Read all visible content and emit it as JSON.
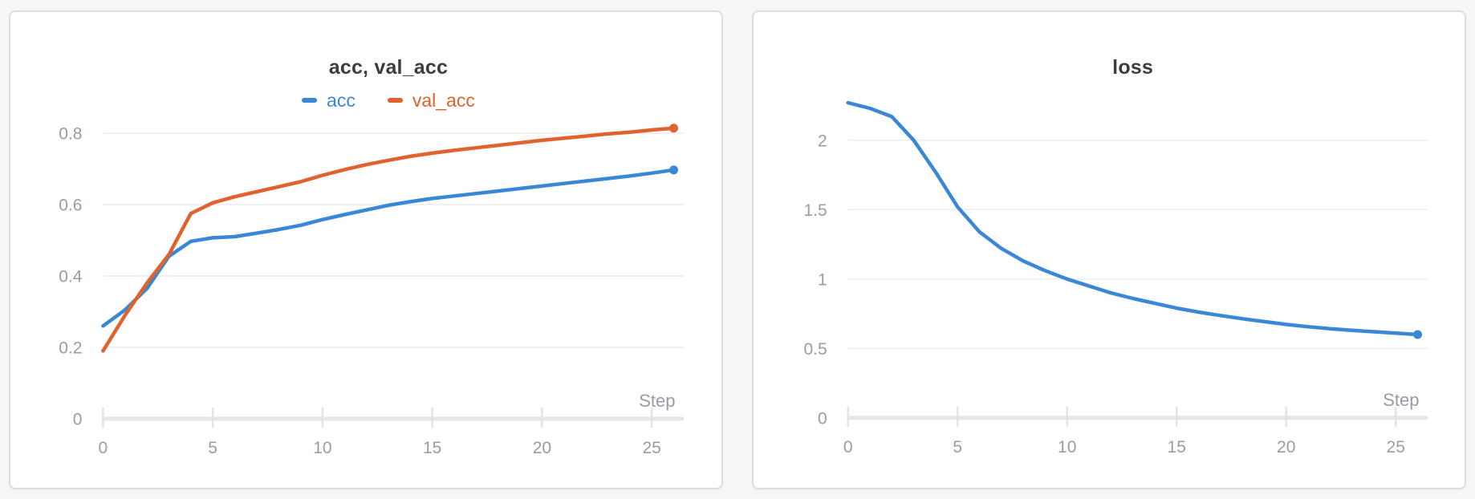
{
  "theme": {
    "page_background": "#f5f6f7",
    "card_background": "#ffffff",
    "card_border": "#dbdddf",
    "gridline_color": "#ececee",
    "axis_color": "#e5e6e8",
    "tick_label_color": "#979ca6",
    "title_color": "#3a3d42",
    "series_blue": "#3a87d8",
    "series_orange": "#e0622d"
  },
  "chart_data": [
    {
      "type": "line",
      "title": "acc, val_acc",
      "xlabel": "Step",
      "x": [
        0,
        1,
        2,
        3,
        4,
        5,
        6,
        7,
        8,
        9,
        10,
        11,
        12,
        13,
        14,
        15,
        16,
        17,
        18,
        19,
        20,
        21,
        22,
        23,
        24,
        25,
        26
      ],
      "x_ticks": [
        0,
        5,
        10,
        15,
        20,
        25
      ],
      "y_ticks": [
        0,
        0.2,
        0.4,
        0.6,
        0.8
      ],
      "xlim": [
        0,
        26
      ],
      "ylim": [
        0,
        0.9
      ],
      "grid": true,
      "legend_position": "top-center",
      "endpoint_markers": true,
      "series": [
        {
          "name": "acc",
          "color": "#3a87d8",
          "values": [
            0.26,
            0.305,
            0.365,
            0.455,
            0.497,
            0.507,
            0.51,
            0.52,
            0.53,
            0.542,
            0.558,
            0.572,
            0.585,
            0.598,
            0.608,
            0.617,
            0.624,
            0.631,
            0.638,
            0.645,
            0.652,
            0.659,
            0.666,
            0.673,
            0.68,
            0.688,
            0.697
          ]
        },
        {
          "name": "val_acc",
          "color": "#e0622d",
          "values": [
            0.19,
            0.29,
            0.38,
            0.46,
            0.575,
            0.605,
            0.622,
            0.636,
            0.65,
            0.664,
            0.682,
            0.698,
            0.712,
            0.724,
            0.735,
            0.744,
            0.752,
            0.759,
            0.766,
            0.773,
            0.78,
            0.786,
            0.792,
            0.798,
            0.803,
            0.809,
            0.814
          ]
        }
      ]
    },
    {
      "type": "line",
      "title": "loss",
      "xlabel": "Step",
      "x": [
        0,
        1,
        2,
        3,
        4,
        5,
        6,
        7,
        8,
        9,
        10,
        11,
        12,
        13,
        14,
        15,
        16,
        17,
        18,
        19,
        20,
        21,
        22,
        23,
        24,
        25,
        26
      ],
      "x_ticks": [
        0,
        5,
        10,
        15,
        20,
        25
      ],
      "y_ticks": [
        0,
        0.5,
        1,
        1.5,
        2
      ],
      "xlim": [
        0,
        26
      ],
      "ylim": [
        0,
        2.5
      ],
      "grid": true,
      "legend_position": "none",
      "endpoint_markers": true,
      "series": [
        {
          "name": "loss",
          "color": "#3a87d8",
          "values": [
            2.27,
            2.23,
            2.17,
            2.0,
            1.77,
            1.52,
            1.34,
            1.22,
            1.13,
            1.06,
            1.0,
            0.95,
            0.9,
            0.86,
            0.825,
            0.79,
            0.762,
            0.737,
            0.714,
            0.693,
            0.673,
            0.656,
            0.642,
            0.63,
            0.62,
            0.61,
            0.6
          ]
        }
      ]
    }
  ]
}
